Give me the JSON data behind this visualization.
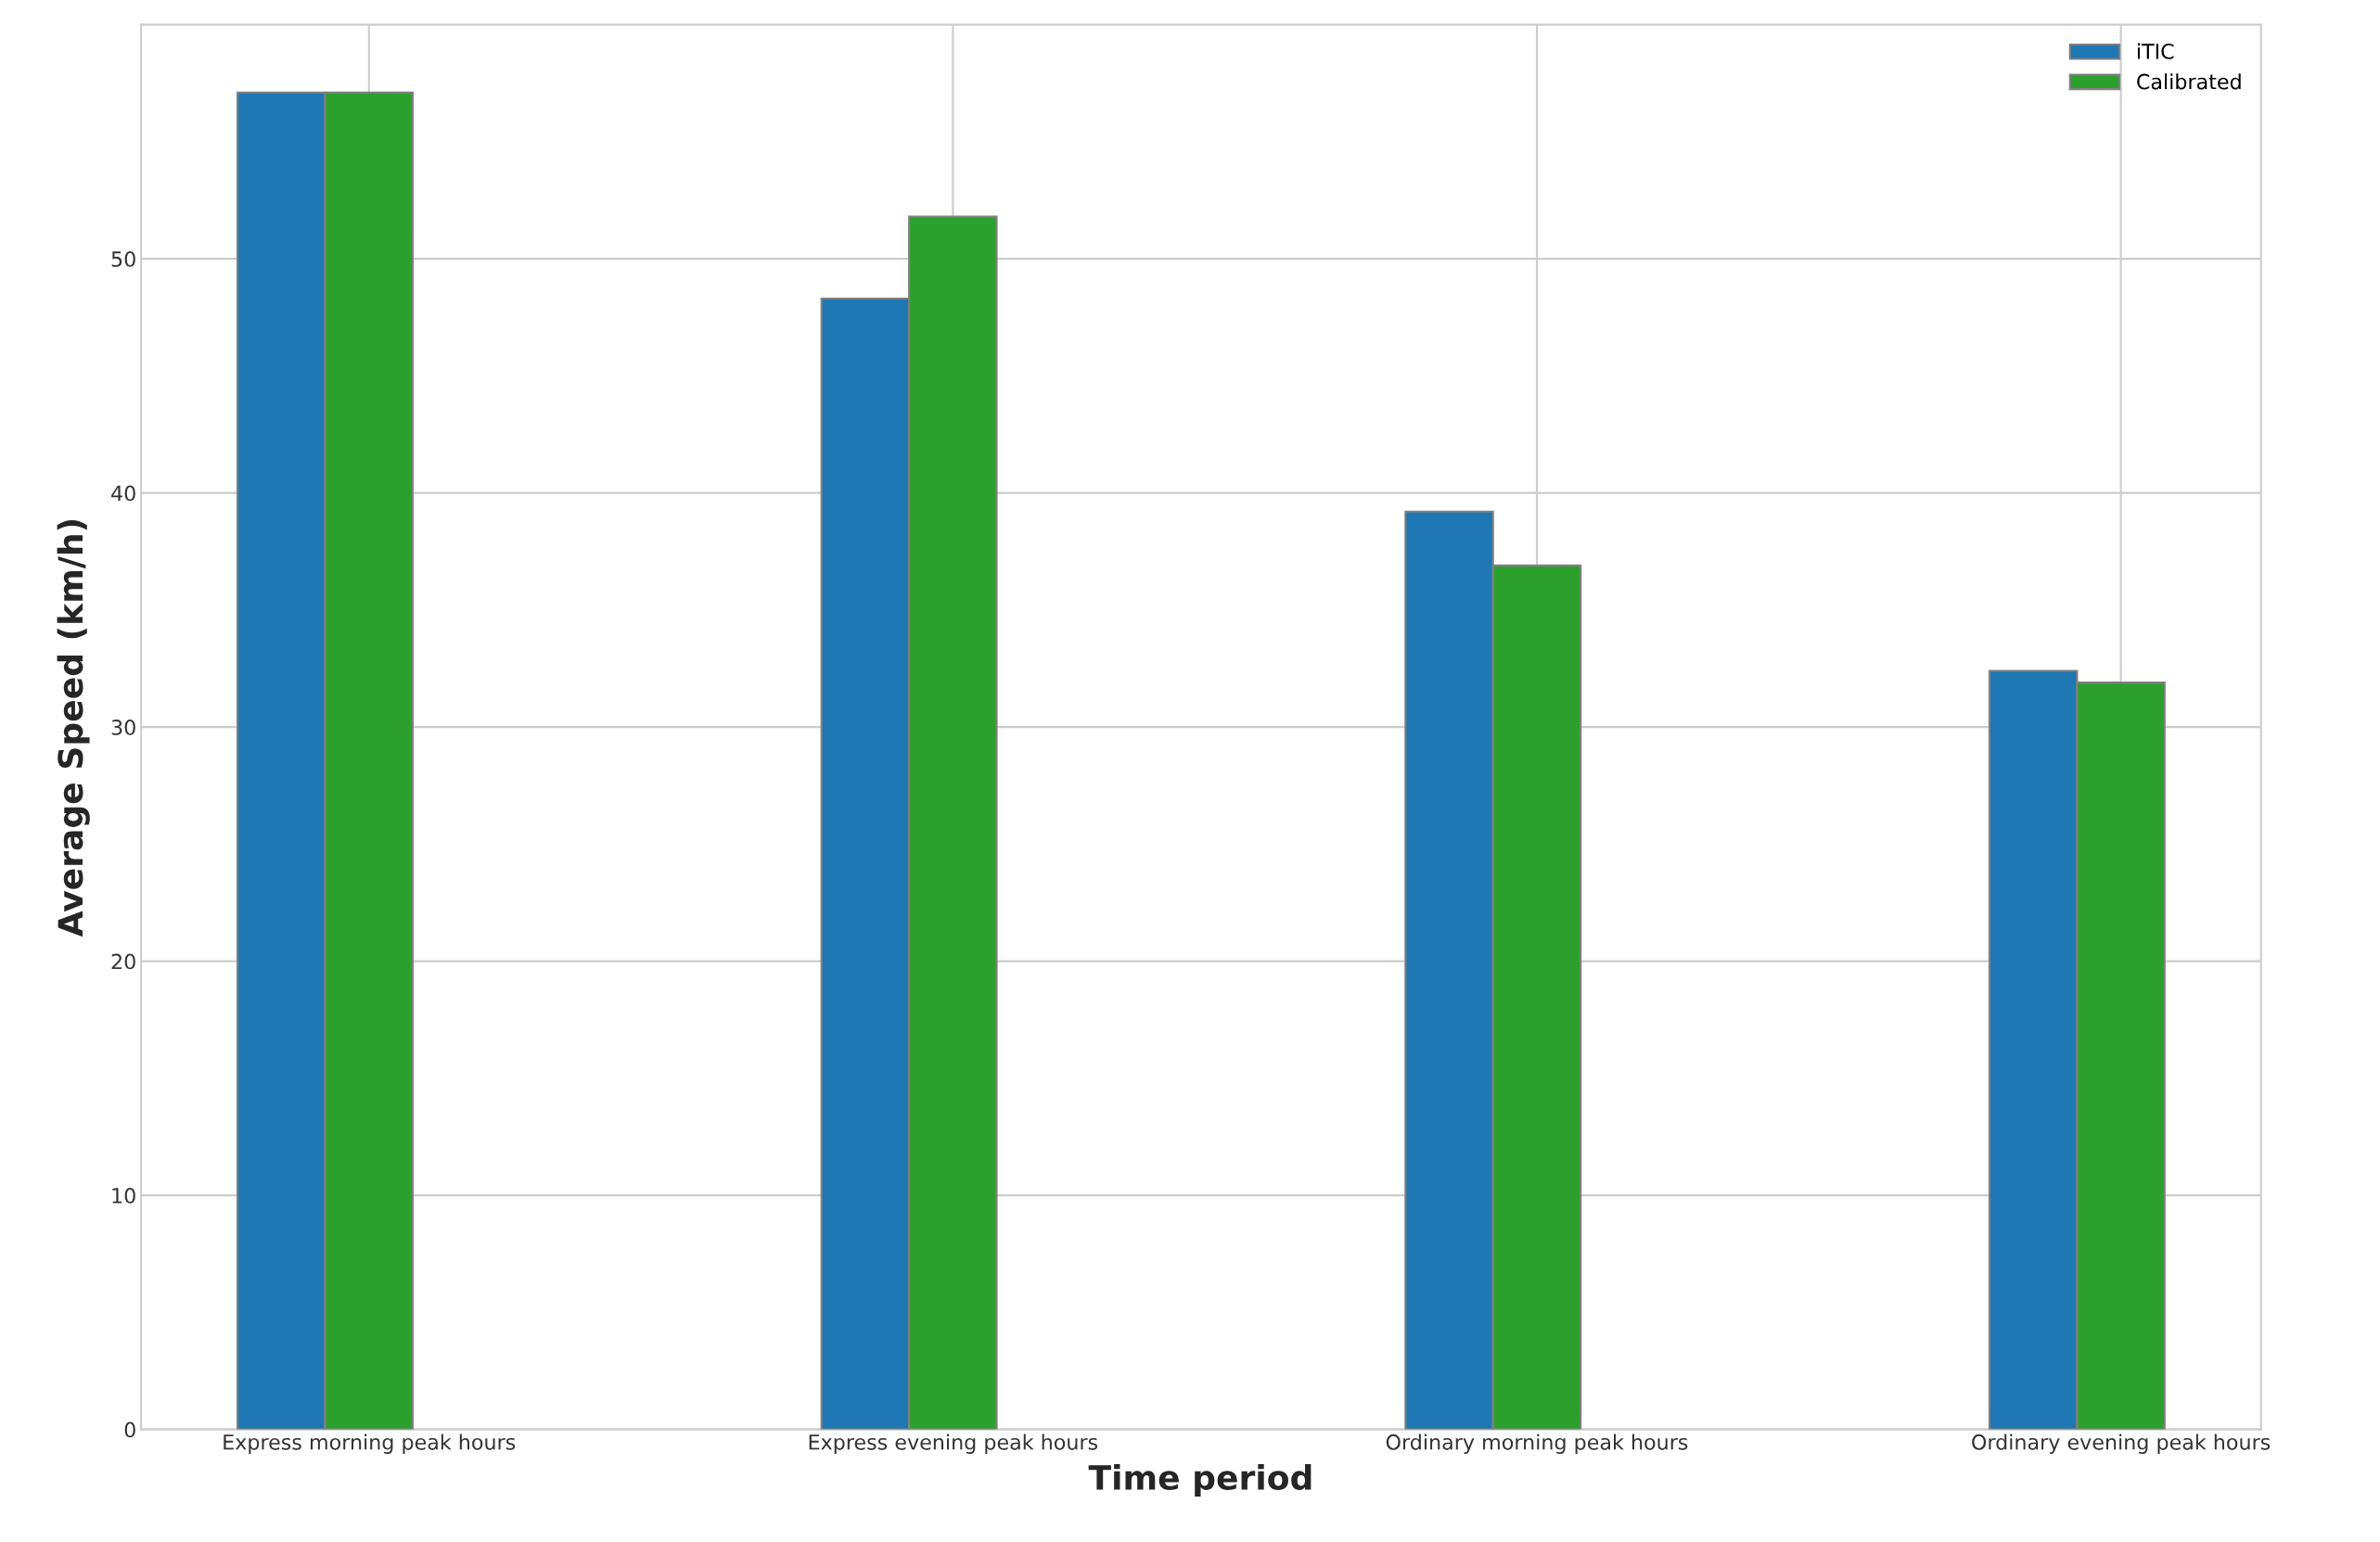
{
  "chart_data": {
    "type": "bar",
    "xlabel": "Time period",
    "ylabel": "Average Speed (km/h)",
    "categories": [
      "Express morning peak hours",
      "Express evening peak hours",
      "Ordinary morning peak hours",
      "Ordinary evening peak hours"
    ],
    "series": [
      {
        "name": "iTIC",
        "color": "#1f77b4",
        "values": [
          57.1,
          48.3,
          39.2,
          32.4
        ]
      },
      {
        "name": "Calibrated",
        "color": "#2ca02c",
        "values": [
          57.1,
          51.8,
          36.9,
          31.9
        ]
      }
    ],
    "ylim": [
      0,
      60
    ],
    "yticks": [
      0,
      10,
      20,
      30,
      40,
      50
    ],
    "grid": true,
    "legend": "top right"
  }
}
